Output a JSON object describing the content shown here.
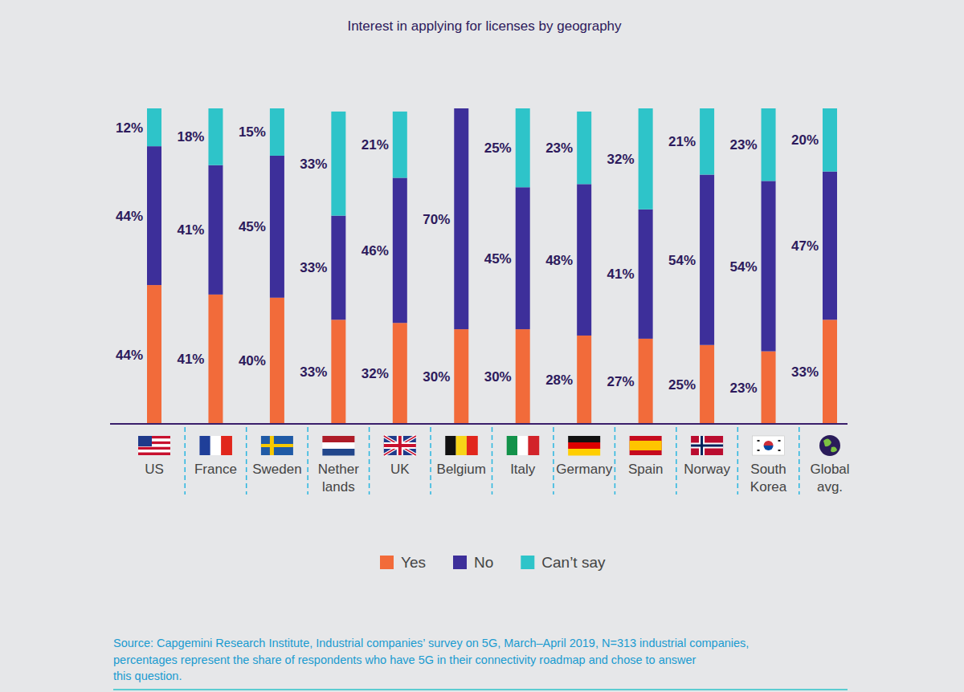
{
  "chart_data": {
    "type": "bar",
    "stacked": true,
    "data_labels": true,
    "tick_labels": "x",
    "legend": "bottom",
    "grid": false,
    "title": "Interest in applying for licenses by geography",
    "categories": [
      "US",
      "France",
      "Sweden",
      "Nether lands",
      "UK",
      "Belgium",
      "Italy",
      "Germany",
      "Spain",
      "Norway",
      "South Korea",
      "Global avg."
    ],
    "ylim": [
      0,
      100
    ],
    "yticks": [
      0,
      100
    ],
    "series": [
      {
        "name": "Yes",
        "color": "#f26b3a",
        "values": [
          44,
          41,
          40,
          33,
          32,
          30,
          30,
          28,
          27,
          25,
          23,
          33
        ],
        "value_labels": [
          "44%",
          "41%",
          "40%",
          "33%",
          "32%",
          "30%",
          "30%",
          "28%",
          "27%",
          "25%",
          "23%",
          "33%"
        ]
      },
      {
        "name": "No",
        "color": "#3d2f9a",
        "values": [
          44,
          41,
          45,
          33,
          46,
          70,
          45,
          48,
          41,
          54,
          54,
          47
        ],
        "value_labels": [
          "44%",
          "41%",
          "45%",
          "33%",
          "46%",
          "70%",
          "45%",
          "48%",
          "41%",
          "54%",
          "54%",
          "47%"
        ]
      },
      {
        "name": "Can’t say",
        "color": "#2ec4c9",
        "values": [
          12,
          18,
          15,
          33,
          21,
          0,
          25,
          23,
          32,
          21,
          23,
          20
        ],
        "value_labels": [
          "12%",
          "18%",
          "15%",
          "33%",
          "21%",
          null,
          "25%",
          "23%",
          "32%",
          "21%",
          "23%",
          "20%"
        ]
      }
    ],
    "source": [
      "Source: Capgemini Research Institute, Industrial companies’ survey on 5G, March–April 2019, N=313 industrial companies,",
      "percentages represent the share of respondents who have 5G in their connectivity roadmap and chose to answer",
      "this question."
    ]
  }
}
